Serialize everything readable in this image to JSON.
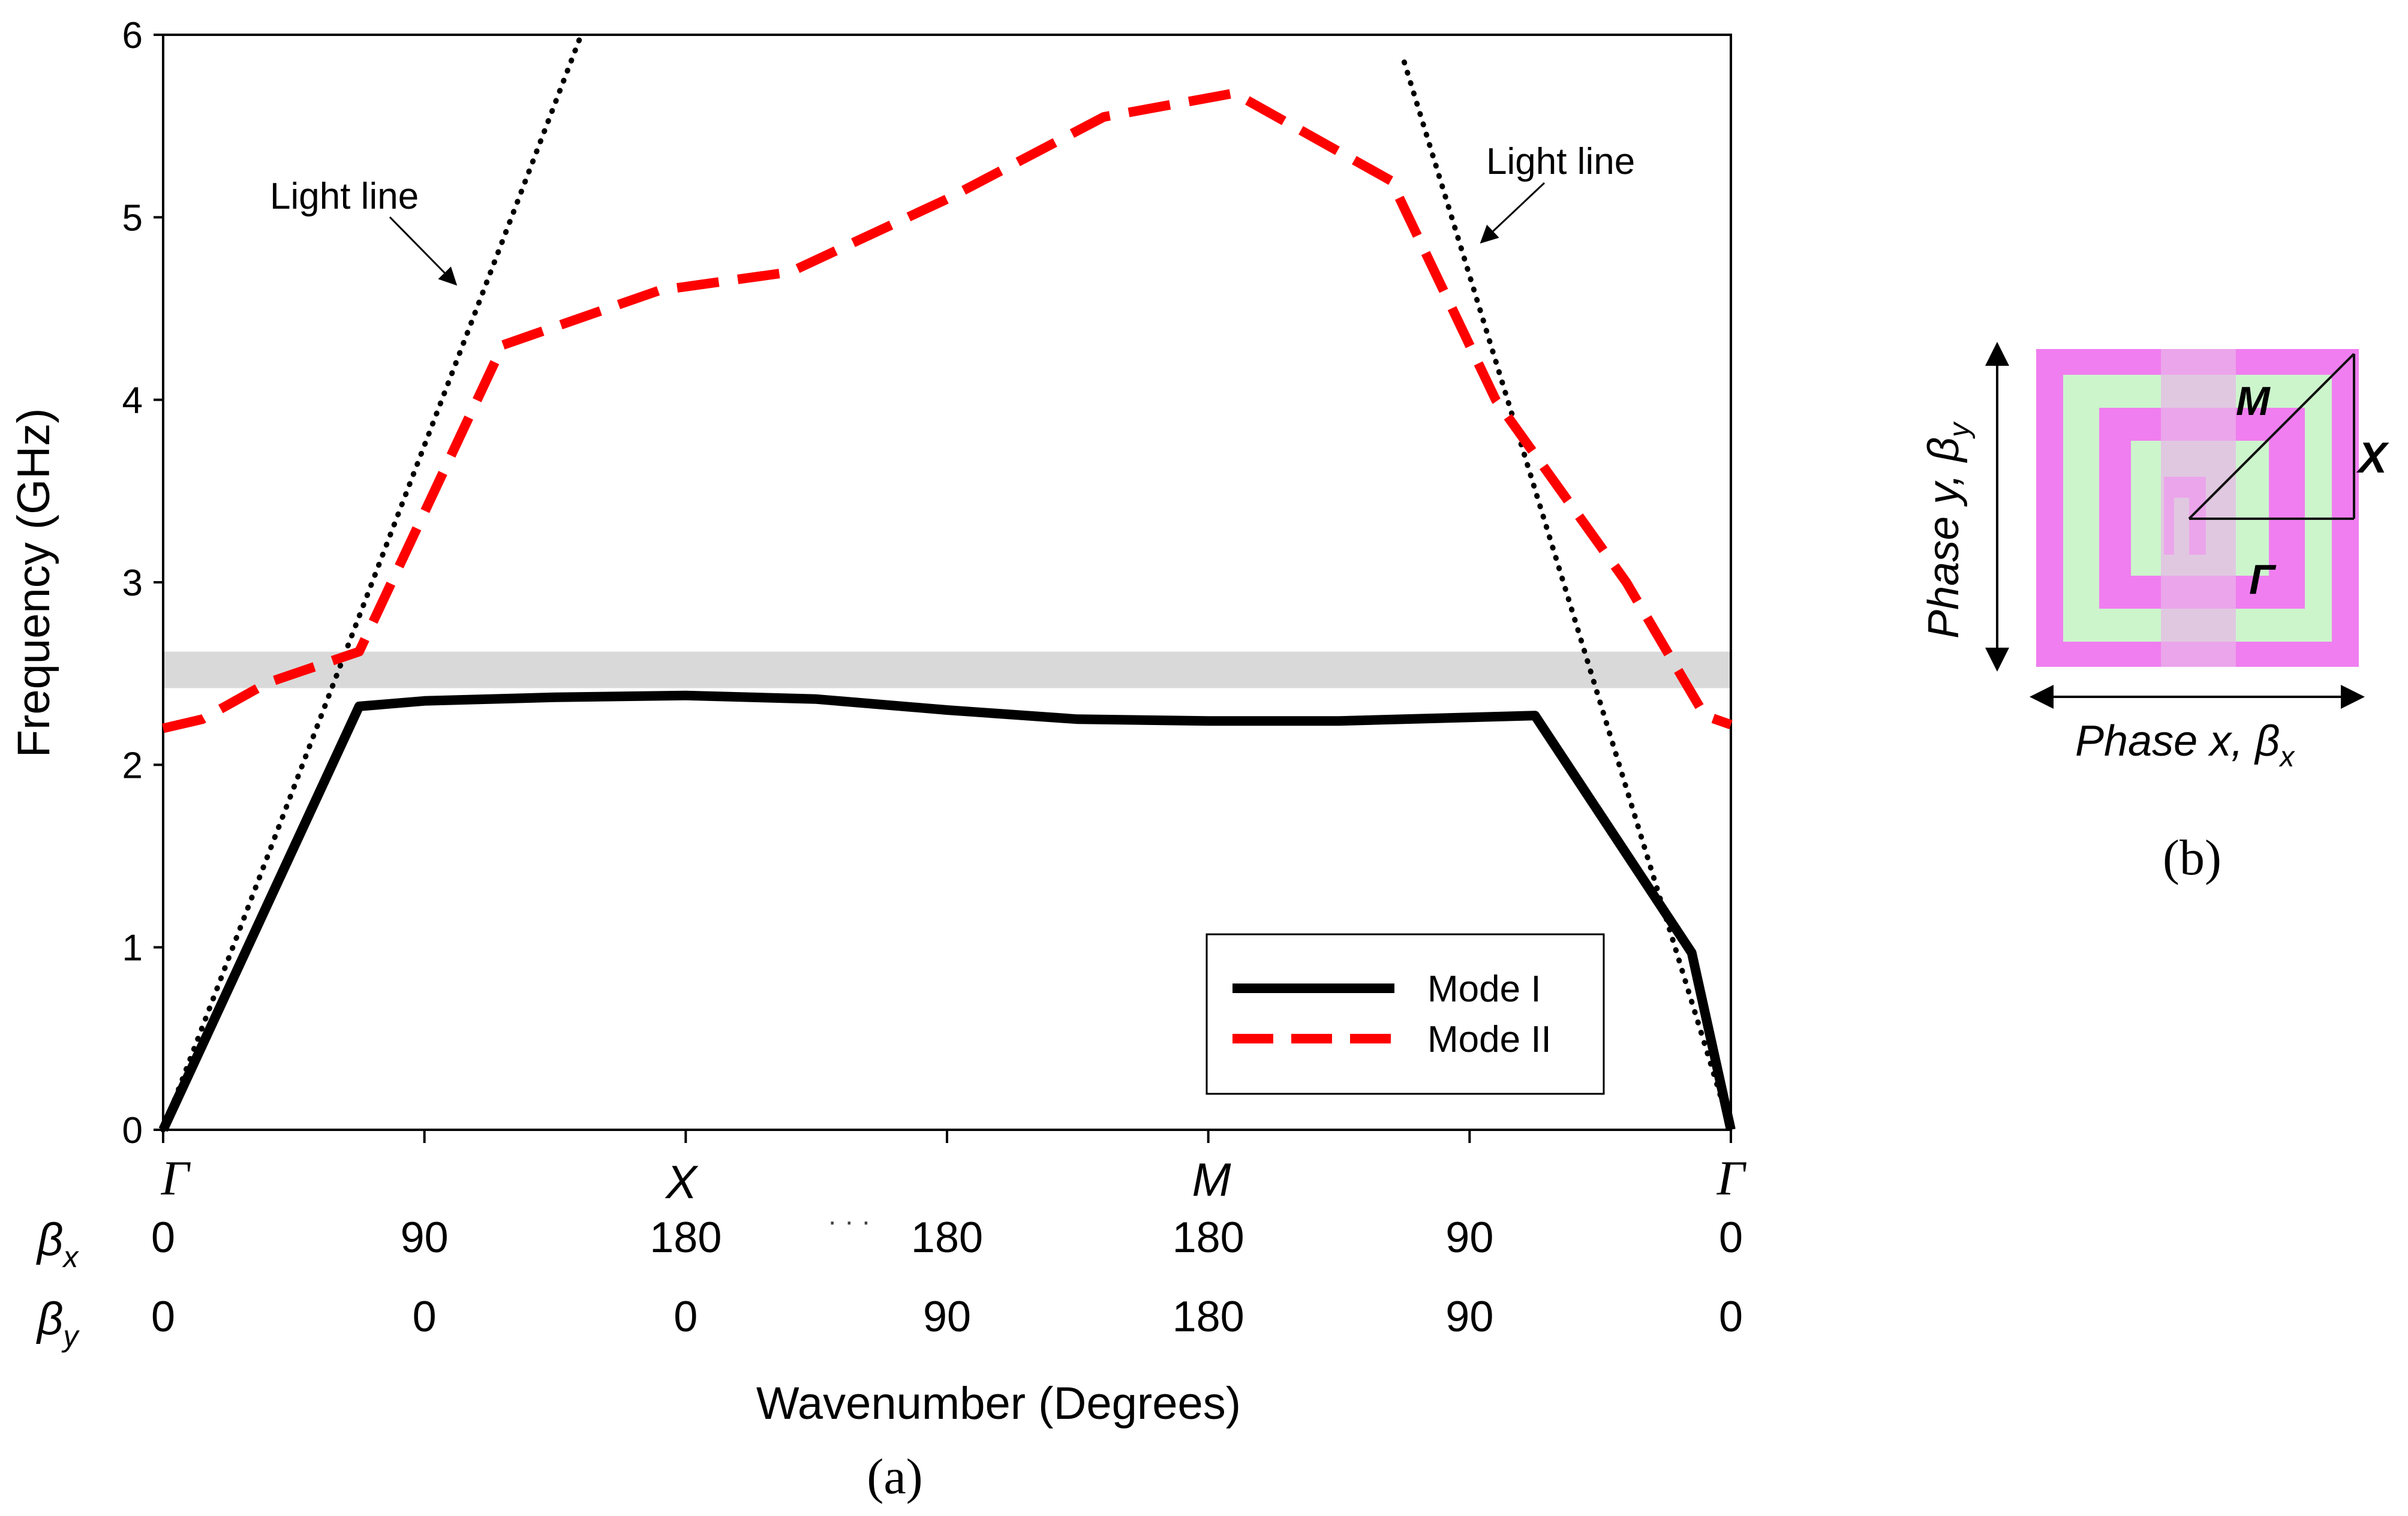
{
  "chart_data": {
    "type": "line",
    "panel_a": {
      "caption": "(a)",
      "xlabel": "Wavenumber (Degrees)",
      "ylabel": "Frequency (GHz)",
      "ylim": [
        0,
        6
      ],
      "yticks": [
        "0",
        "1",
        "2",
        "3",
        "4",
        "5",
        "6"
      ],
      "x_domain": [
        0,
        6
      ],
      "grid": false,
      "symmetry_points": [
        {
          "x": 0,
          "label": "Γ"
        },
        {
          "x": 2,
          "label": "X"
        },
        {
          "x": 4,
          "label": "M"
        },
        {
          "x": 6,
          "label": "Γ"
        }
      ],
      "beta_x_label": "βx",
      "beta_y_label": "βy",
      "beta_x_ticks": [
        "0",
        "90",
        "180",
        "180",
        "180",
        "90",
        "0"
      ],
      "beta_y_ticks": [
        "0",
        "0",
        "0",
        "90",
        "180",
        "90",
        "0"
      ],
      "tick_positions": [
        0,
        1,
        2,
        3,
        4,
        5,
        6
      ],
      "series": [
        {
          "name": "Mode I",
          "style": "solid",
          "color": "#000000",
          "x": [
            0,
            0.75,
            1.0,
            1.5,
            2.0,
            2.5,
            3.0,
            3.5,
            4.0,
            4.5,
            5.0,
            5.25,
            5.85,
            6.0
          ],
          "y": [
            0,
            2.32,
            2.35,
            2.37,
            2.38,
            2.36,
            2.3,
            2.25,
            2.24,
            2.24,
            2.26,
            2.27,
            0.97,
            0
          ]
        },
        {
          "name": "Mode II",
          "style": "dashed",
          "color": "#ff0000",
          "x": [
            0,
            0.15,
            0.4,
            0.75,
            1.3,
            1.9,
            2.4,
            3.0,
            3.6,
            4.1,
            4.7,
            5.1,
            5.6,
            5.9,
            6.0
          ],
          "y": [
            2.2,
            2.25,
            2.45,
            2.62,
            4.3,
            4.6,
            4.7,
            5.1,
            5.55,
            5.68,
            5.2,
            4.0,
            3.0,
            2.27,
            2.22
          ]
        }
      ],
      "light_lines": [
        {
          "x": [
            0,
            1.6
          ],
          "y": [
            0,
            6
          ]
        },
        {
          "x": [
            4.75,
            6.0
          ],
          "y": [
            5.85,
            0
          ]
        }
      ],
      "light_line_labels": [
        "Light line",
        "Light line"
      ],
      "band": {
        "ymin": 2.42,
        "ymax": 2.62,
        "color": "#d9d9d9"
      },
      "legend": {
        "position": "bottom-right",
        "entries": [
          "Mode I",
          "Mode II"
        ]
      },
      "extra_axis_marks": "· · ·"
    },
    "panel_b": {
      "caption": "(b)",
      "points": {
        "gamma": "Γ",
        "x": "X",
        "m": "M"
      },
      "axis_x_label": "Phase x, ",
      "axis_x_beta": "β",
      "axis_x_sub": "x",
      "axis_y_label": "Phase y, ",
      "axis_y_beta": "β",
      "axis_y_sub": "y",
      "colors": {
        "outer": "#f07ef0",
        "inner": "#ccf5cc",
        "overlay": "#e8b6e8"
      }
    }
  }
}
